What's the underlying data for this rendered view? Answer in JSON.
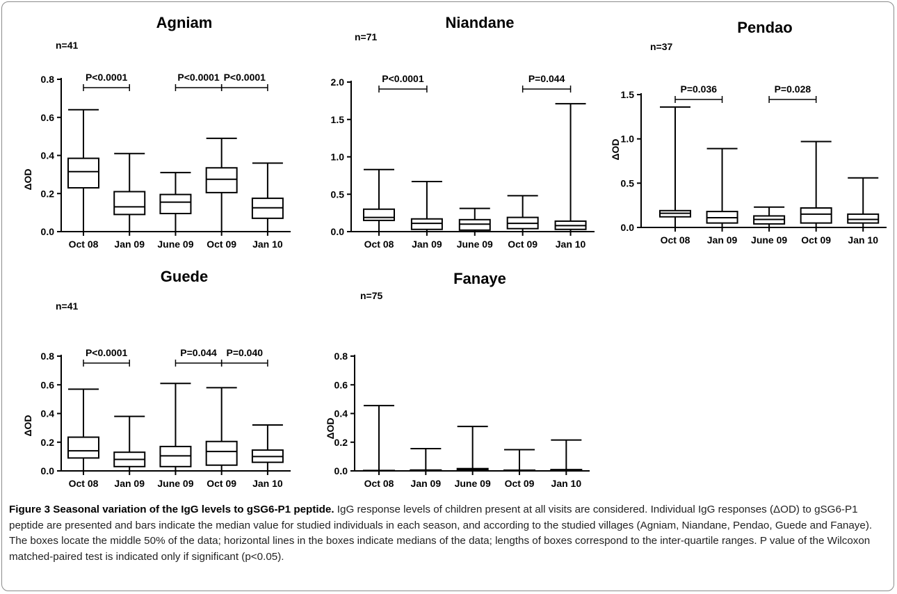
{
  "figure": {
    "charts": [
      {
        "type": "box",
        "title": "Agniam",
        "n_label": "n=41",
        "ylabel": "ΔOD",
        "categories": [
          "Oct 08",
          "Jan 09",
          "June 09",
          "Oct 09",
          "Jan 10"
        ],
        "ylim": [
          0,
          0.8
        ],
        "yticks": [
          "0.0",
          "0.2",
          "0.4",
          "0.6",
          "0.8"
        ],
        "boxes": [
          {
            "min": 0.0,
            "q1": 0.23,
            "median": 0.315,
            "q3": 0.385,
            "max": 0.64
          },
          {
            "min": 0.0,
            "q1": 0.09,
            "median": 0.13,
            "q3": 0.21,
            "max": 0.41
          },
          {
            "min": 0.0,
            "q1": 0.095,
            "median": 0.155,
            "q3": 0.195,
            "max": 0.31
          },
          {
            "min": 0.0,
            "q1": 0.205,
            "median": 0.275,
            "q3": 0.335,
            "max": 0.49
          },
          {
            "min": 0.0,
            "q1": 0.07,
            "median": 0.125,
            "q3": 0.175,
            "max": 0.36
          }
        ],
        "comparisons": [
          {
            "from": 0,
            "to": 1,
            "label": "P<0.0001",
            "y": 0.76
          },
          {
            "from": 2,
            "to": 3,
            "label": "P<0.0001",
            "y": 0.76
          },
          {
            "from": 3,
            "to": 4,
            "label": "P<0.0001",
            "y": 0.76
          }
        ]
      },
      {
        "type": "box",
        "title": "Niandane",
        "n_label": "n=71",
        "ylabel": "",
        "categories": [
          "Oct 08",
          "Jan 09",
          "June 09",
          "Oct 09",
          "Jan 10"
        ],
        "ylim": [
          0,
          2.0
        ],
        "yticks": [
          "0.0",
          "0.5",
          "1.0",
          "1.5",
          "2.0"
        ],
        "boxes": [
          {
            "min": 0.0,
            "q1": 0.15,
            "median": 0.19,
            "q3": 0.3,
            "max": 0.83
          },
          {
            "min": 0.0,
            "q1": 0.03,
            "median": 0.11,
            "q3": 0.17,
            "max": 0.67
          },
          {
            "min": 0.0,
            "q1": 0.02,
            "median": 0.1,
            "q3": 0.16,
            "max": 0.31
          },
          {
            "min": 0.0,
            "q1": 0.04,
            "median": 0.11,
            "q3": 0.19,
            "max": 0.48
          },
          {
            "min": 0.0,
            "q1": 0.03,
            "median": 0.08,
            "q3": 0.14,
            "max": 1.71
          }
        ],
        "comparisons": [
          {
            "from": 0,
            "to": 1,
            "label": "P<0.0001",
            "y": 1.9
          },
          {
            "from": 3,
            "to": 4,
            "label": "P=0.044",
            "y": 1.9
          }
        ]
      },
      {
        "type": "box",
        "title": "Pendao",
        "n_label": "n=37",
        "ylabel": "ΔOD",
        "categories": [
          "Oct 08",
          "Jan 09",
          "June 09",
          "Oct 09",
          "Jan 10"
        ],
        "ylim": [
          0,
          1.5
        ],
        "yticks": [
          "0.0",
          "0.5",
          "1.0",
          "1.5"
        ],
        "boxes": [
          {
            "min": 0.0,
            "q1": 0.12,
            "median": 0.16,
            "q3": 0.19,
            "max": 1.36
          },
          {
            "min": 0.0,
            "q1": 0.05,
            "median": 0.11,
            "q3": 0.18,
            "max": 0.89
          },
          {
            "min": 0.0,
            "q1": 0.04,
            "median": 0.09,
            "q3": 0.13,
            "max": 0.23
          },
          {
            "min": 0.0,
            "q1": 0.05,
            "median": 0.15,
            "q3": 0.22,
            "max": 0.97
          },
          {
            "min": 0.0,
            "q1": 0.05,
            "median": 0.09,
            "q3": 0.15,
            "max": 0.56
          }
        ],
        "comparisons": [
          {
            "from": 0,
            "to": 1,
            "label": "P=0.036",
            "y": 1.45
          },
          {
            "from": 2,
            "to": 3,
            "label": "P=0.028",
            "y": 1.45
          }
        ]
      },
      {
        "type": "box",
        "title": "Guede",
        "n_label": "n=41",
        "ylabel": "ΔOD",
        "categories": [
          "Oct 08",
          "Jan 09",
          "June 09",
          "Oct 09",
          "Jan 10"
        ],
        "ylim": [
          0,
          0.8
        ],
        "yticks": [
          "0.0",
          "0.2",
          "0.4",
          "0.6",
          "0.8"
        ],
        "boxes": [
          {
            "min": 0.0,
            "q1": 0.09,
            "median": 0.14,
            "q3": 0.235,
            "max": 0.57
          },
          {
            "min": 0.0,
            "q1": 0.03,
            "median": 0.08,
            "q3": 0.13,
            "max": 0.38
          },
          {
            "min": 0.0,
            "q1": 0.03,
            "median": 0.105,
            "q3": 0.17,
            "max": 0.61
          },
          {
            "min": 0.0,
            "q1": 0.04,
            "median": 0.135,
            "q3": 0.205,
            "max": 0.58
          },
          {
            "min": 0.0,
            "q1": 0.06,
            "median": 0.1,
            "q3": 0.145,
            "max": 0.32
          }
        ],
        "comparisons": [
          {
            "from": 0,
            "to": 1,
            "label": "P<0.0001",
            "y": 0.76
          },
          {
            "from": 2,
            "to": 3,
            "label": "P=0.044",
            "y": 0.76
          },
          {
            "from": 3,
            "to": 4,
            "label": "P=0.040",
            "y": 0.76
          }
        ]
      },
      {
        "type": "box",
        "title": "Fanaye",
        "n_label": "n=75",
        "ylabel": "ΔOD",
        "categories": [
          "Oct 08",
          "Jan 09",
          "June 09",
          "Oct 09",
          "Jan 10"
        ],
        "ylim": [
          0,
          0.8
        ],
        "yticks": [
          "0.0",
          "0.2",
          "0.4",
          "0.6",
          "0.8"
        ],
        "boxes": [
          {
            "min": 0.0,
            "q1": 0.0,
            "median": 0.0,
            "q3": 0.003,
            "max": 0.455
          },
          {
            "min": 0.0,
            "q1": 0.0,
            "median": 0.002,
            "q3": 0.006,
            "max": 0.155
          },
          {
            "min": 0.0,
            "q1": 0.0,
            "median": 0.008,
            "q3": 0.016,
            "max": 0.31
          },
          {
            "min": 0.0,
            "q1": 0.0,
            "median": 0.002,
            "q3": 0.005,
            "max": 0.148
          },
          {
            "min": 0.0,
            "q1": 0.0,
            "median": 0.004,
            "q3": 0.009,
            "max": 0.215
          }
        ],
        "comparisons": []
      }
    ]
  },
  "caption": {
    "title": "Figure 3 Seasonal variation of the IgG levels to gSG6-P1 peptide.",
    "text": " IgG response levels of children present at all visits are considered. Individual IgG responses (ΔOD) to gSG6-P1 peptide are presented and bars indicate the median value for studied individuals in each season, and according to the studied villages (Agniam, Niandane, Pendao, Guede and Fanaye). The boxes locate the middle 50% of the data; horizontal lines in the boxes indicate medians of the data; lengths of boxes correspond to the inter-quartile ranges. P value of the Wilcoxon matched-paired test is indicated only if significant (p<0.05)."
  },
  "chart_data": [
    {
      "type": "box",
      "title": "Agniam",
      "ylabel": "ΔOD",
      "categories": [
        "Oct 08",
        "Jan 09",
        "June 09",
        "Oct 09",
        "Jan 10"
      ],
      "ylim": [
        0,
        0.8
      ],
      "series": [
        {
          "name": "",
          "min": [
            0,
            0,
            0,
            0,
            0
          ],
          "q1": [
            0.23,
            0.09,
            0.095,
            0.205,
            0.07
          ],
          "median": [
            0.315,
            0.13,
            0.155,
            0.275,
            0.125
          ],
          "q3": [
            0.385,
            0.21,
            0.195,
            0.335,
            0.175
          ],
          "max": [
            0.64,
            0.41,
            0.31,
            0.49,
            0.36
          ]
        }
      ],
      "annotations": [
        "n=41",
        "P<0.0001",
        "P<0.0001",
        "P<0.0001"
      ]
    },
    {
      "type": "box",
      "title": "Niandane",
      "ylabel": "",
      "categories": [
        "Oct 08",
        "Jan 09",
        "June 09",
        "Oct 09",
        "Jan 10"
      ],
      "ylim": [
        0,
        2.0
      ],
      "series": [
        {
          "name": "",
          "min": [
            0,
            0,
            0,
            0,
            0
          ],
          "q1": [
            0.15,
            0.03,
            0.02,
            0.04,
            0.03
          ],
          "median": [
            0.19,
            0.11,
            0.1,
            0.11,
            0.08
          ],
          "q3": [
            0.3,
            0.17,
            0.16,
            0.19,
            0.14
          ],
          "max": [
            0.83,
            0.67,
            0.31,
            0.48,
            1.71
          ]
        }
      ],
      "annotations": [
        "n=71",
        "P<0.0001",
        "P=0.044"
      ]
    },
    {
      "type": "box",
      "title": "Pendao",
      "ylabel": "ΔOD",
      "categories": [
        "Oct 08",
        "Jan 09",
        "June 09",
        "Oct 09",
        "Jan 10"
      ],
      "ylim": [
        0,
        1.5
      ],
      "series": [
        {
          "name": "",
          "min": [
            0,
            0,
            0,
            0,
            0
          ],
          "q1": [
            0.12,
            0.05,
            0.04,
            0.05,
            0.05
          ],
          "median": [
            0.16,
            0.11,
            0.09,
            0.15,
            0.09
          ],
          "q3": [
            0.19,
            0.18,
            0.13,
            0.22,
            0.15
          ],
          "max": [
            1.36,
            0.89,
            0.23,
            0.97,
            0.56
          ]
        }
      ],
      "annotations": [
        "n=37",
        "P=0.036",
        "P=0.028"
      ]
    },
    {
      "type": "box",
      "title": "Guede",
      "ylabel": "ΔOD",
      "categories": [
        "Oct 08",
        "Jan 09",
        "June 09",
        "Oct 09",
        "Jan 10"
      ],
      "ylim": [
        0,
        0.8
      ],
      "series": [
        {
          "name": "",
          "min": [
            0,
            0,
            0,
            0,
            0
          ],
          "q1": [
            0.09,
            0.03,
            0.03,
            0.04,
            0.06
          ],
          "median": [
            0.14,
            0.08,
            0.105,
            0.135,
            0.1
          ],
          "q3": [
            0.235,
            0.13,
            0.17,
            0.205,
            0.145
          ],
          "max": [
            0.57,
            0.38,
            0.61,
            0.58,
            0.32
          ]
        }
      ],
      "annotations": [
        "n=41",
        "P<0.0001",
        "P=0.044",
        "P=0.040"
      ]
    },
    {
      "type": "box",
      "title": "Fanaye",
      "ylabel": "ΔOD",
      "categories": [
        "Oct 08",
        "Jan 09",
        "June 09",
        "Oct 09",
        "Jan 10"
      ],
      "ylim": [
        0,
        0.8
      ],
      "series": [
        {
          "name": "",
          "min": [
            0,
            0,
            0,
            0,
            0
          ],
          "q1": [
            0,
            0,
            0,
            0,
            0
          ],
          "median": [
            0,
            0.002,
            0.008,
            0.002,
            0.004
          ],
          "q3": [
            0.003,
            0.006,
            0.016,
            0.005,
            0.009
          ],
          "max": [
            0.455,
            0.155,
            0.31,
            0.148,
            0.215
          ]
        }
      ],
      "annotations": [
        "n=75"
      ]
    }
  ]
}
